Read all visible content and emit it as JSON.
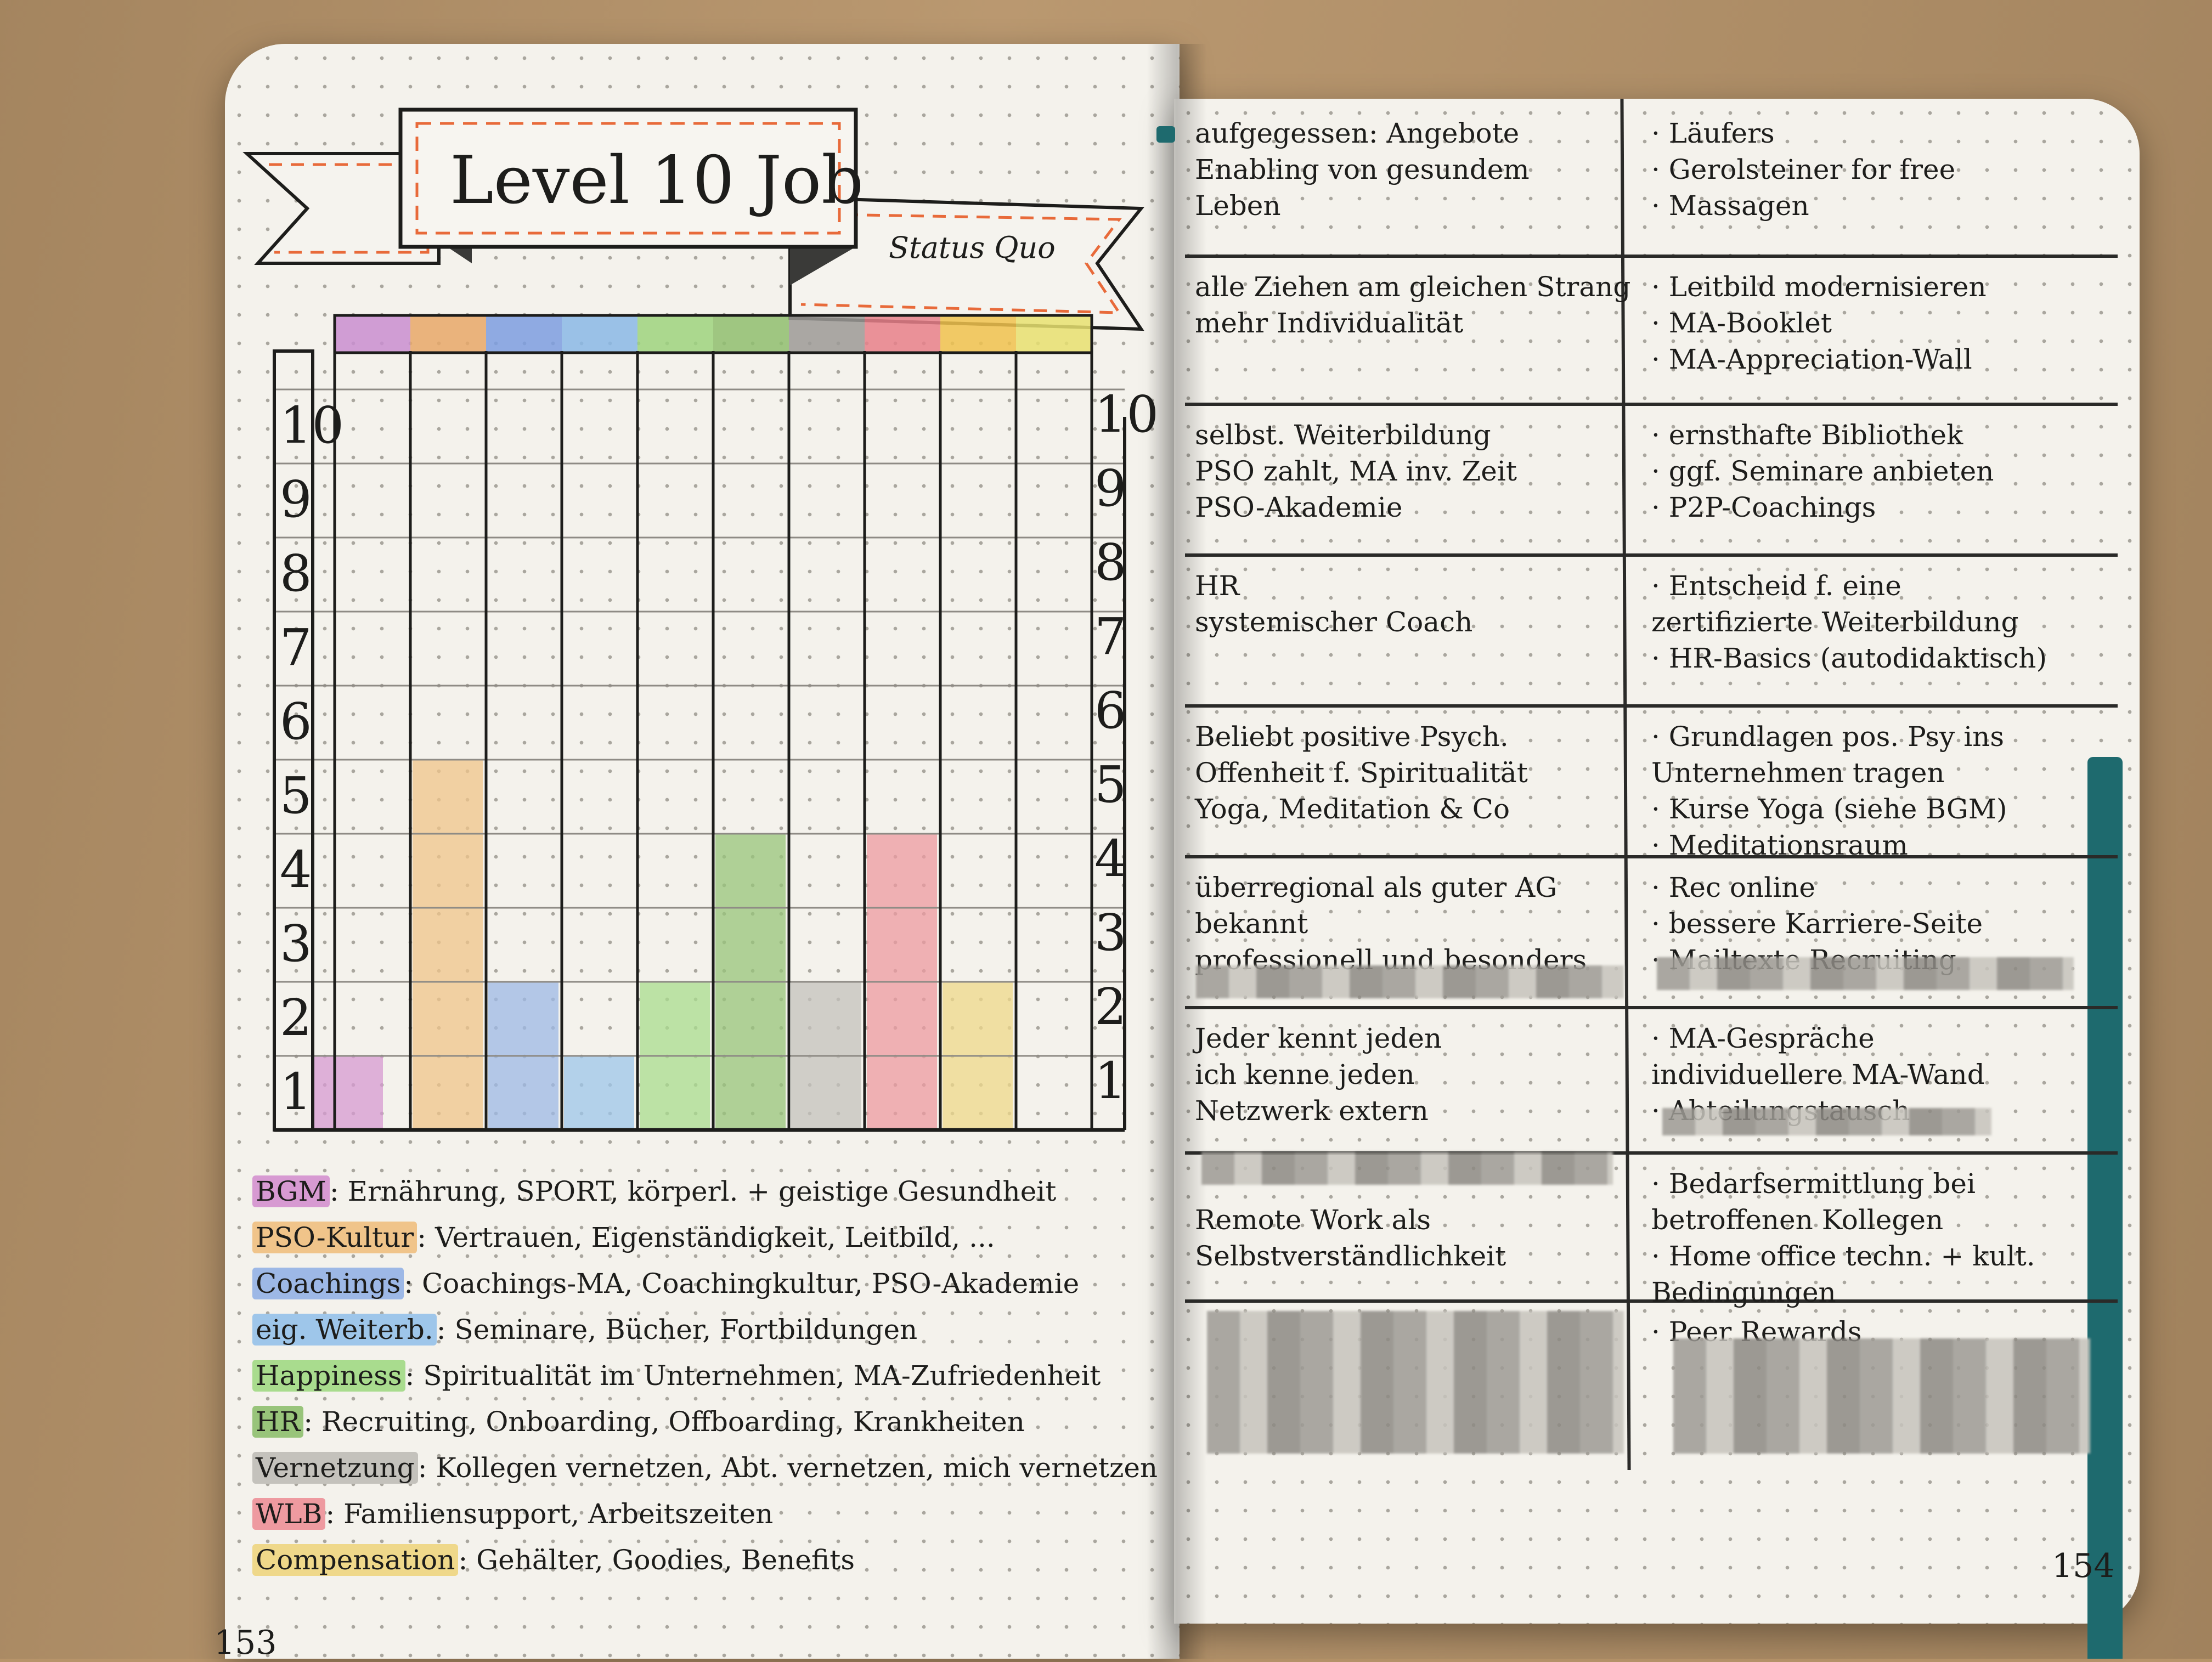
{
  "banner": {
    "title": "Level 10 Job",
    "subtitle": "Status Quo"
  },
  "chart_data": {
    "type": "bar",
    "title": "Level 10 Job",
    "subtitle": "Status Quo",
    "categories": [
      "BGM",
      "PSO-Kultur",
      "Coachings",
      "eig. Weiterb.",
      "Happiness",
      "HR",
      "Vernetzung",
      "WLB",
      "Compensation"
    ],
    "values": [
      1,
      5,
      2,
      1,
      2,
      4,
      2,
      4,
      2
    ],
    "colors": [
      "#d79ad2",
      "#f0c48a",
      "#9db8e6",
      "#9ec6ea",
      "#a9dc8e",
      "#98c47a",
      "#c4c2bc",
      "#ee9aa0",
      "#efd88a"
    ],
    "header_colors": [
      "#c98ed0",
      "#e8a868",
      "#7d9ee0",
      "#8ab8e6",
      "#9ed47e",
      "#8fbe6e",
      "#9c9a96",
      "#e8808a",
      "#f0c24e",
      "#e8e070"
    ],
    "ylim": [
      0,
      10
    ],
    "yticks": [
      1,
      2,
      3,
      4,
      5,
      6,
      7,
      8,
      9,
      10
    ],
    "grid": true
  },
  "legend": [
    {
      "key": "BGM",
      "text": ": Ernährung, SPORT, körperl. + geistige Gesundheit",
      "color": "#d79ad2"
    },
    {
      "key": "PSO-Kultur",
      "text": ": Vertrauen, Eigenständigkeit, Leitbild, ...",
      "color": "#f0c48a"
    },
    {
      "key": "Coachings",
      "text": ": Coachings-MA, Coachingkultur, PSO-Akademie",
      "color": "#9db8e6"
    },
    {
      "key": "eig. Weiterb.",
      "text": ": Seminare, Bücher, Fortbildungen",
      "color": "#9ec6ea"
    },
    {
      "key": "Happiness",
      "text": ": Spiritualität im Unternehmen, MA-Zufriedenheit",
      "color": "#a9dc8e"
    },
    {
      "key": "HR",
      "text": ": Recruiting, Onboarding, Offboarding, Krankheiten",
      "color": "#98c47a"
    },
    {
      "key": "Vernetzung",
      "text": ": Kollegen vernetzen, Abt. vernetzen, mich vernetzen",
      "color": "#c4c2bc"
    },
    {
      "key": "WLB",
      "text": ": Familiensupport, Arbeitszeiten",
      "color": "#ee9aa0"
    },
    {
      "key": "Compensation",
      "text": ": Gehälter, Goodies, Benefits",
      "color": "#efd88a"
    }
  ],
  "page_numbers": {
    "left": "153",
    "right": "154"
  },
  "table": [
    {
      "left": [
        "aufgegessen: Angebote",
        "Enabling von gesundem",
        "Leben"
      ],
      "right": [
        "· Läufers",
        "· Gerolsteiner for free",
        "· Massagen"
      ]
    },
    {
      "left": [
        "alle Ziehen am gleichen Strang",
        "mehr Individualität"
      ],
      "right": [
        "· Leitbild modernisieren",
        "· MA-Booklet",
        "· MA-Appreciation-Wall"
      ]
    },
    {
      "left": [
        "selbst. Weiterbildung",
        "PSO zahlt, MA inv. Zeit",
        "PSO-Akademie"
      ],
      "right": [
        "· ernsthafte Bibliothek",
        "· ggf. Seminare anbieten",
        "· P2P-Coachings"
      ]
    },
    {
      "left": [
        "HR",
        "systemischer Coach"
      ],
      "right": [
        "· Entscheid f. eine",
        "zertifizierte Weiterbildung",
        "· HR-Basics (autodidaktisch)"
      ]
    },
    {
      "left": [
        "Beliebt positive Psych.",
        "Offenheit f. Spiritualität",
        "Yoga, Meditation & Co"
      ],
      "right": [
        "· Grundlagen pos. Psy ins",
        "Unternehmen tragen",
        "· Kurse Yoga (siehe BGM)",
        "· Meditationsraum"
      ]
    },
    {
      "left": [
        "überregional als guter AG",
        "bekannt",
        "professionell und besonders"
      ],
      "right": [
        "· Rec online",
        "· bessere Karriere-Seite",
        "· Mailtexte Recruiting"
      ]
    },
    {
      "left": [
        "Jeder kennt jeden",
        "ich kenne jeden",
        "Netzwerk extern"
      ],
      "right": [
        "· MA-Gespräche",
        "individuellere MA-Wand",
        "· Abteilungstausch"
      ]
    },
    {
      "left": [
        "",
        "Remote Work als",
        "Selbstverständlichkeit"
      ],
      "right": [
        "· Bedarfsermittlung bei",
        "betroffenen Kollegen",
        "· Home office techn. + kult.",
        "Bedingungen"
      ]
    },
    {
      "left": [
        ""
      ],
      "right": [
        "· Peer Rewards"
      ]
    }
  ]
}
